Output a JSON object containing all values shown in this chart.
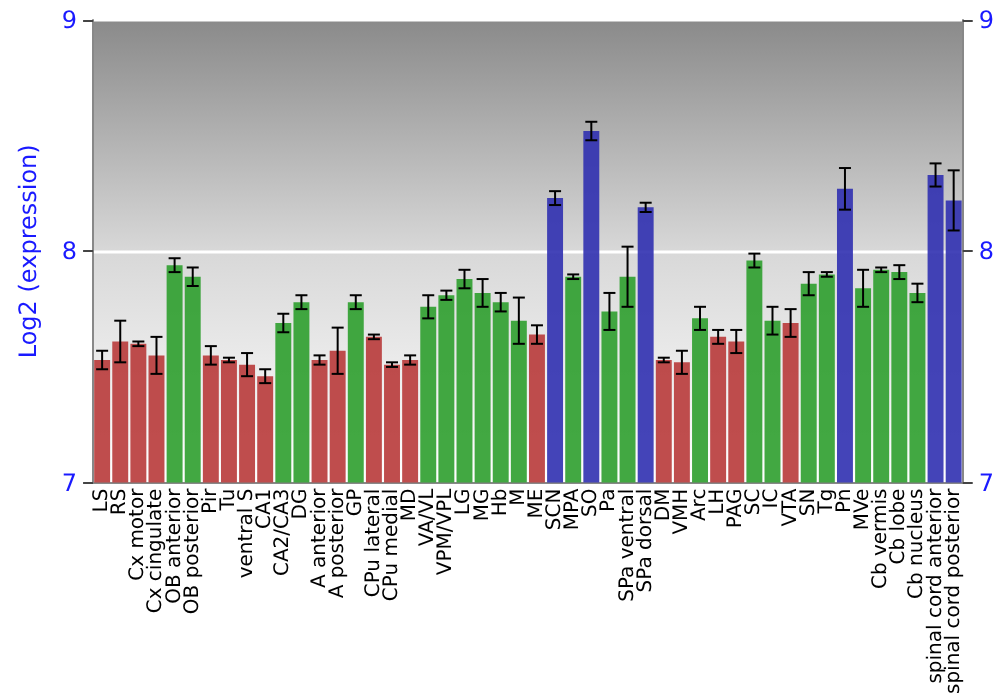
{
  "chart_data": {
    "type": "bar",
    "ylabel": "Log2 (expression)",
    "categories": [
      "LS",
      "RS",
      "Cx motor",
      "Cx cingulate",
      "OB anterior",
      "OB posterior",
      "Pir",
      "Tu",
      "ventral S",
      "CA1",
      "CA2/CA3",
      "DG",
      "A anterior",
      "A posterior",
      "GP",
      "CPu lateral",
      "CPu medial",
      "MD",
      "VA/VL",
      "VPM/VPL",
      "LG",
      "MG",
      "Hb",
      "M",
      "ME",
      "SCN",
      "MPA",
      "SO",
      "Pa",
      "SPa ventral",
      "SPa dorsal",
      "DM",
      "VMH",
      "Arc",
      "LH",
      "PAG",
      "SC",
      "IC",
      "VTA",
      "SN",
      "Tg",
      "Pn",
      "MVe",
      "Cb vermis",
      "Cb lobe",
      "Cb nucleus",
      "spinal cord anterior",
      "spinal cord posterior"
    ],
    "values": [
      7.53,
      7.61,
      7.6,
      7.55,
      7.94,
      7.89,
      7.55,
      7.53,
      7.51,
      7.46,
      7.69,
      7.78,
      7.53,
      7.57,
      7.78,
      7.63,
      7.51,
      7.53,
      7.76,
      7.81,
      7.88,
      7.82,
      7.78,
      7.7,
      7.64,
      8.23,
      7.89,
      8.52,
      7.74,
      7.89,
      8.19,
      7.53,
      7.52,
      7.71,
      7.63,
      7.61,
      7.96,
      7.7,
      7.69,
      7.86,
      7.9,
      8.27,
      7.84,
      7.92,
      7.91,
      7.82,
      8.33,
      8.22
    ],
    "errors": [
      0.04,
      0.09,
      0.01,
      0.08,
      0.03,
      0.04,
      0.04,
      0.01,
      0.05,
      0.03,
      0.04,
      0.03,
      0.02,
      0.1,
      0.03,
      0.01,
      0.01,
      0.02,
      0.05,
      0.02,
      0.04,
      0.06,
      0.04,
      0.1,
      0.04,
      0.03,
      0.01,
      0.04,
      0.08,
      0.13,
      0.02,
      0.01,
      0.05,
      0.05,
      0.03,
      0.05,
      0.03,
      0.06,
      0.06,
      0.05,
      0.01,
      0.09,
      0.08,
      0.01,
      0.03,
      0.04,
      0.05,
      0.13
    ],
    "colors": [
      "#b83a3a",
      "#b83a3a",
      "#b83a3a",
      "#b83a3a",
      "#2e9e2e",
      "#2e9e2e",
      "#b83a3a",
      "#b83a3a",
      "#b83a3a",
      "#b83a3a",
      "#2e9e2e",
      "#2e9e2e",
      "#b83a3a",
      "#b83a3a",
      "#2e9e2e",
      "#b83a3a",
      "#b83a3a",
      "#b83a3a",
      "#2e9e2e",
      "#2e9e2e",
      "#2e9e2e",
      "#2e9e2e",
      "#2e9e2e",
      "#2e9e2e",
      "#b83a3a",
      "#3030b0",
      "#2e9e2e",
      "#3030b0",
      "#2e9e2e",
      "#2e9e2e",
      "#3030b0",
      "#b83a3a",
      "#b83a3a",
      "#2e9e2e",
      "#b83a3a",
      "#b83a3a",
      "#2e9e2e",
      "#2e9e2e",
      "#b83a3a",
      "#2e9e2e",
      "#2e9e2e",
      "#3030b0",
      "#2e9e2e",
      "#2e9e2e",
      "#2e9e2e",
      "#2e9e2e",
      "#3030b0",
      "#3030b0"
    ],
    "ylim": [
      7,
      9
    ],
    "yticks": [
      7,
      8,
      9
    ],
    "y2lim": [
      7,
      9
    ],
    "y2ticks": [
      7,
      8,
      9
    ],
    "grid": "y"
  }
}
